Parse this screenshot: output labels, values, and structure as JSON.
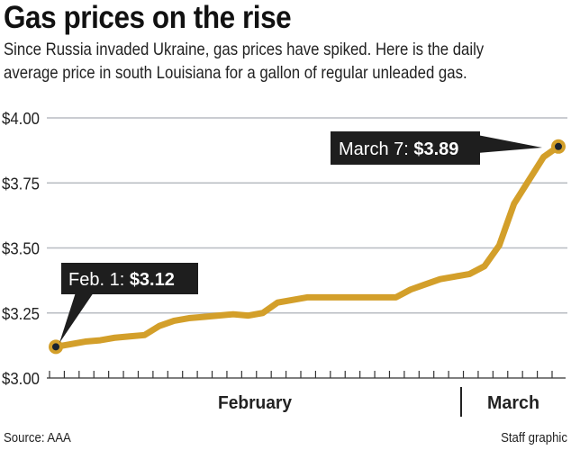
{
  "title": "Gas prices on the rise",
  "subtitle_lines": [
    "Since Russia invaded Ukraine, gas prices have spiked. Here is the daily",
    "average price in south Louisiana for a gallon of regular unleaded gas."
  ],
  "source": "Source: AAA",
  "credit": "Staff graphic",
  "colors": {
    "line": "#d39f2a",
    "grid": "#b8bcc2",
    "callout": "#1e1e1e",
    "dot": "#1a2330"
  },
  "chart_data": {
    "type": "line",
    "title": "Gas prices on the rise",
    "x_range": [
      "Feb. 1",
      "March 7"
    ],
    "x_tick_labels": [
      "February",
      "March"
    ],
    "y_tick_labels": [
      "$3.00",
      "$3.25",
      "$3.50",
      "$3.75",
      "$4.00"
    ],
    "y_ticks": [
      3.0,
      3.25,
      3.5,
      3.75,
      4.0
    ],
    "ylim": [
      3.0,
      4.0
    ],
    "grid": "horizontal",
    "values": [
      3.12,
      3.13,
      3.14,
      3.145,
      3.155,
      3.16,
      3.165,
      3.2,
      3.22,
      3.23,
      3.235,
      3.24,
      3.245,
      3.24,
      3.25,
      3.29,
      3.3,
      3.31,
      3.31,
      3.31,
      3.31,
      3.31,
      3.31,
      3.31,
      3.34,
      3.36,
      3.38,
      3.39,
      3.4,
      3.43,
      3.51,
      3.67,
      3.76,
      3.85,
      3.89
    ],
    "annotations": [
      {
        "label": "Feb. 1: ",
        "value": "$3.12"
      },
      {
        "label": "March 7: ",
        "value": "$3.89"
      }
    ]
  }
}
